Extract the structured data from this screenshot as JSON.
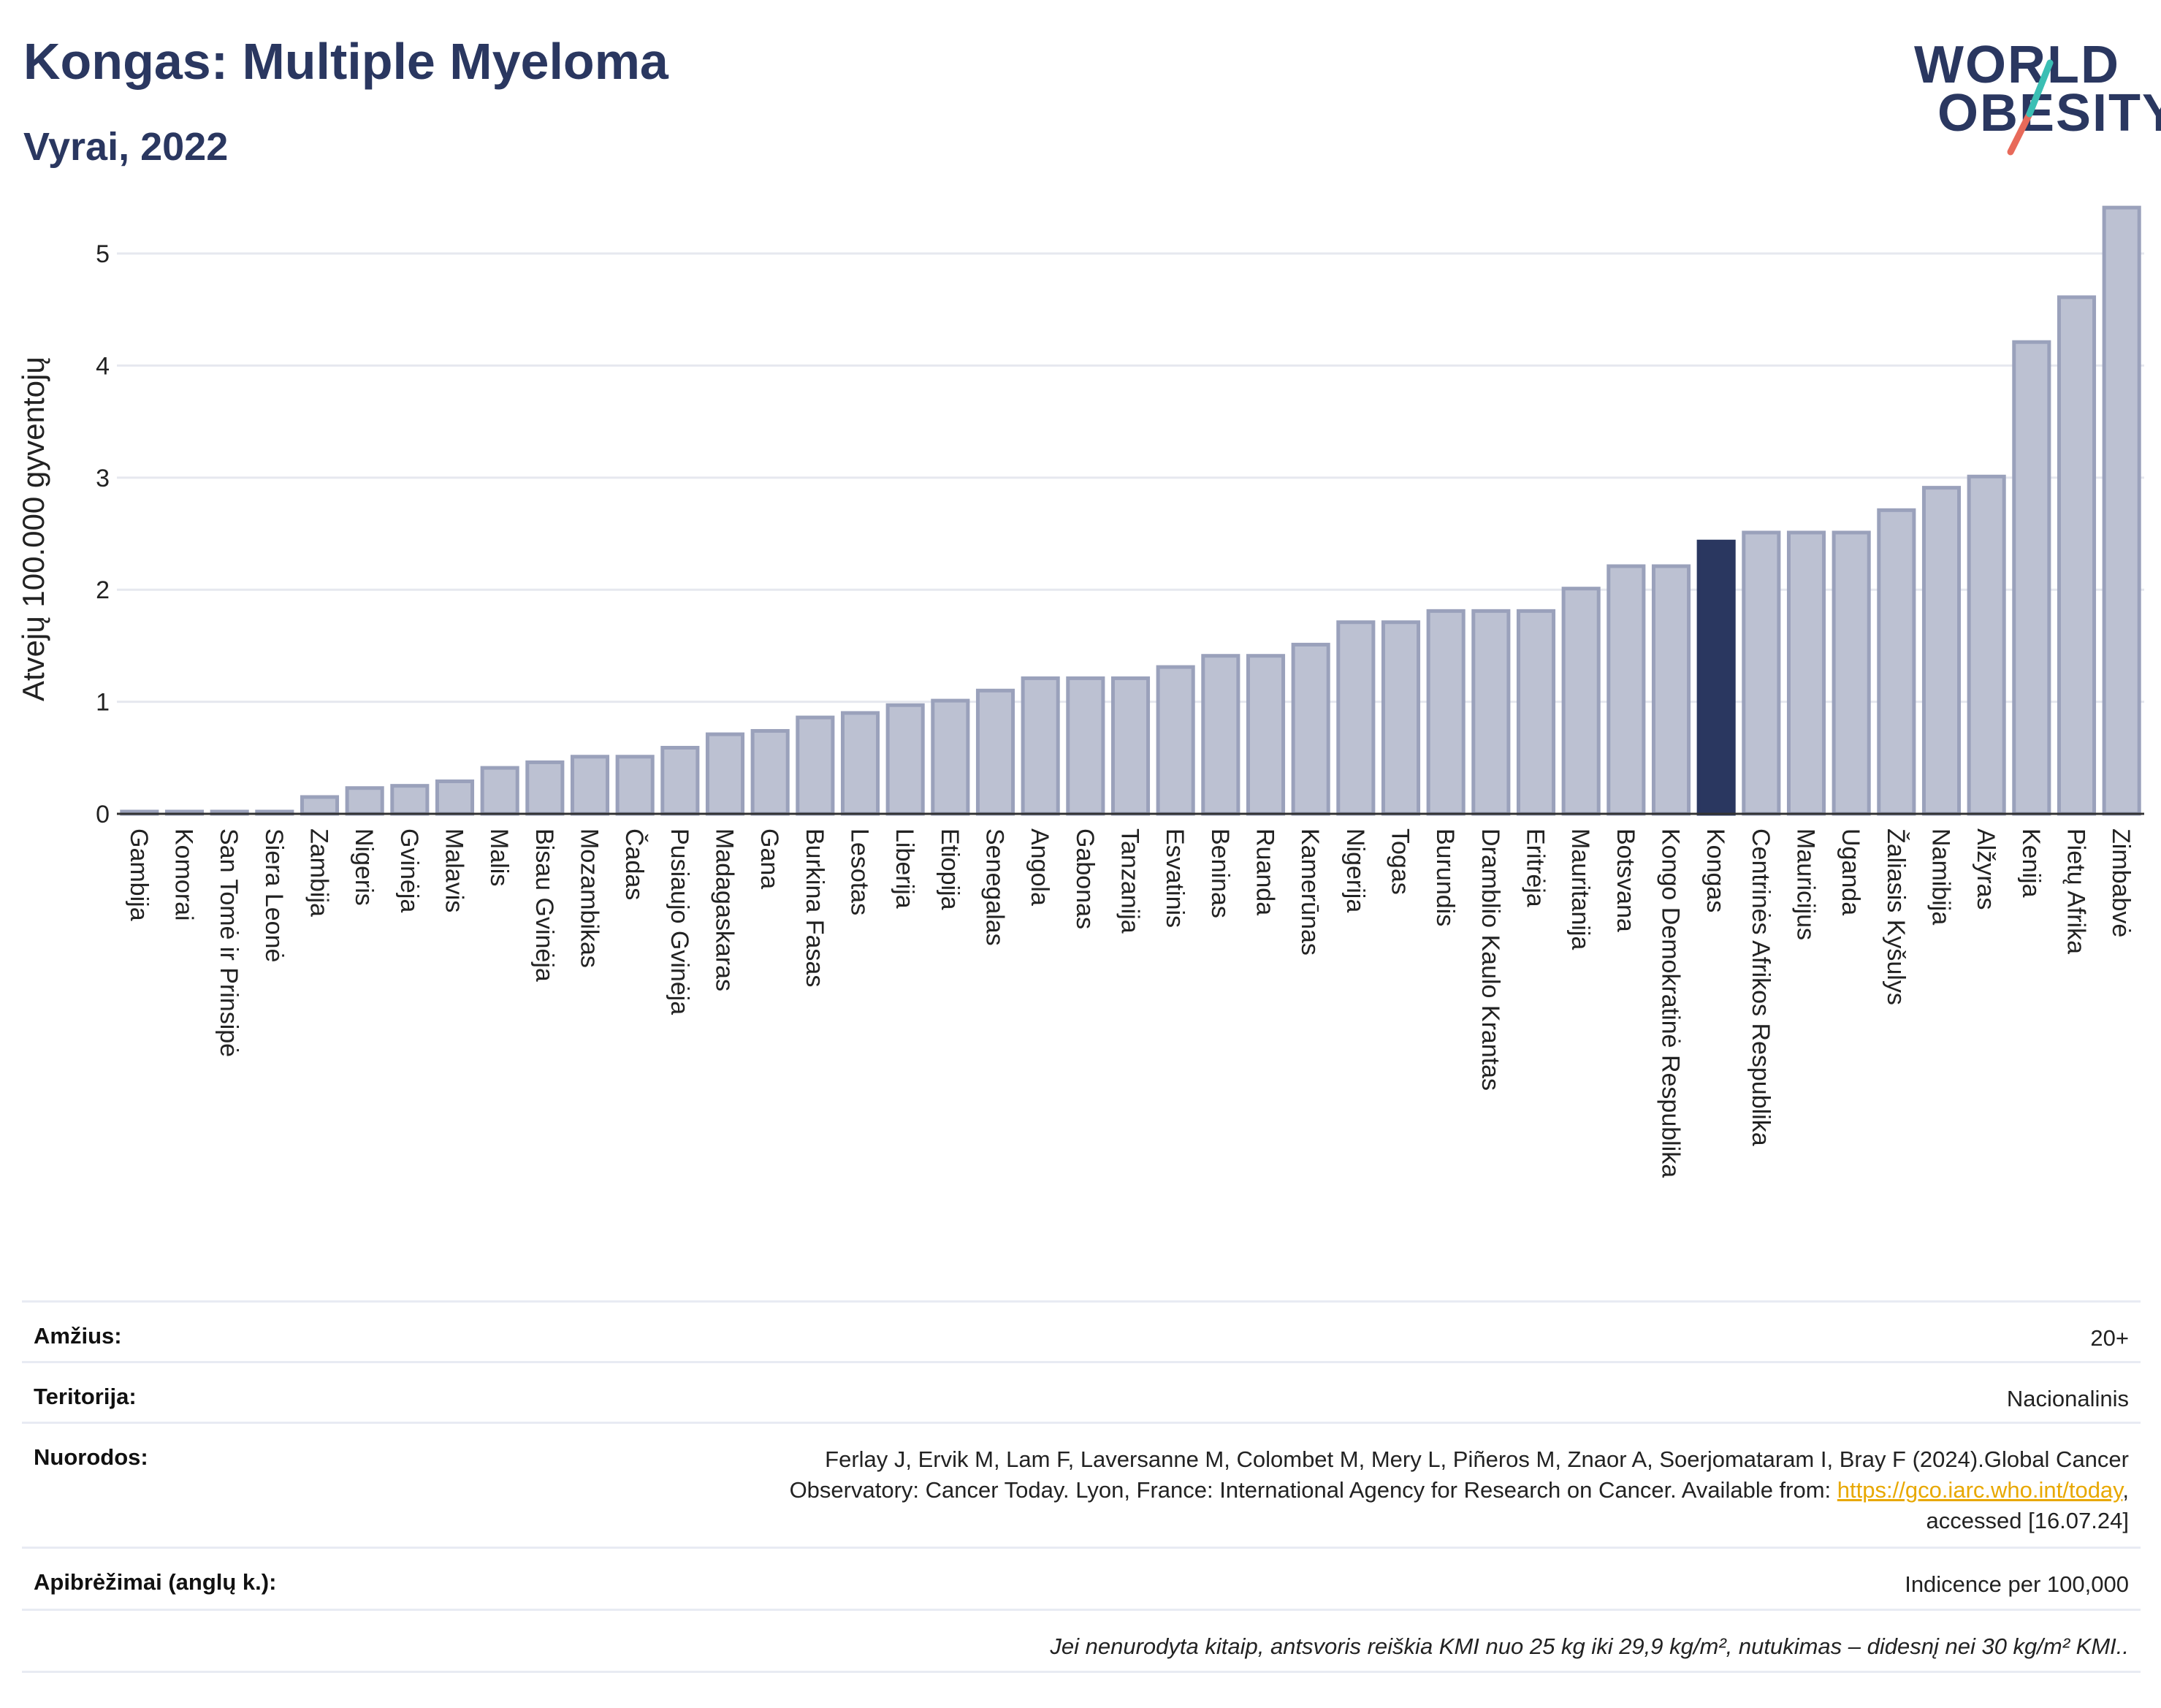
{
  "header": {
    "title": "Kongas: Multiple Myeloma",
    "subtitle": "Vyrai, 2022",
    "logo_line1": "WORLD",
    "logo_line2": "OBESITY"
  },
  "colors": {
    "bar": "#bcc1d2",
    "bar_stroke": "#9aa1bb",
    "highlight": "#2a3760",
    "grid": "#e6e8ef",
    "axis": "#333333",
    "logo_teal": "#3bbfb4",
    "logo_coral": "#e86a5a"
  },
  "chart_data": {
    "type": "bar",
    "ylabel": "Atvejų 100.000 gyventojų",
    "ylim": [
      0,
      5.6
    ],
    "yticks": [
      0,
      1,
      2,
      3,
      4,
      5
    ],
    "highlight": "Kongas",
    "categories": [
      "Gambija",
      "Komorai",
      "San Tomė ir Prinsipė",
      "Siera Leonė",
      "Zambija",
      "Nigeris",
      "Gvinėja",
      "Malavis",
      "Malis",
      "Bisau Gvinėja",
      "Mozambikas",
      "Čadas",
      "Pusiaujo Gvinėja",
      "Madagaskaras",
      "Gana",
      "Burkina Fasas",
      "Lesotas",
      "Liberija",
      "Etiopija",
      "Senegalas",
      "Angola",
      "Gabonas",
      "Tanzanija",
      "Esvatinis",
      "Beninas",
      "Ruanda",
      "Kamerūnas",
      "Nigerija",
      "Togas",
      "Burundis",
      "Dramblio Kaulo Krantas",
      "Eritrėja",
      "Mauritanija",
      "Botsvana",
      "Kongo Demokratinė Respublika",
      "Kongas",
      "Centrinės Afrikos Respublika",
      "Mauricijus",
      "Uganda",
      "Žaliasis Kyšulys",
      "Namibija",
      "Alžyras",
      "Kenija",
      "Pietų Afrika",
      "Zimbabvė"
    ],
    "values": [
      0.02,
      0.02,
      0.02,
      0.02,
      0.15,
      0.23,
      0.25,
      0.29,
      0.41,
      0.46,
      0.51,
      0.51,
      0.59,
      0.71,
      0.74,
      0.86,
      0.9,
      0.97,
      1.01,
      1.1,
      1.21,
      1.21,
      1.21,
      1.31,
      1.41,
      1.41,
      1.51,
      1.71,
      1.71,
      1.81,
      1.81,
      1.81,
      2.01,
      2.21,
      2.21,
      2.43,
      2.51,
      2.51,
      2.51,
      2.71,
      2.91,
      3.01,
      4.21,
      4.61,
      5.41
    ]
  },
  "meta": {
    "age_label": "Amžius:",
    "age_value": "20+",
    "territory_label": "Teritorija:",
    "territory_value": "Nacionalinis",
    "refs_label": "Nuorodos:",
    "refs_line1": "Ferlay J, Ervik M, Lam F, Laversanne M, Colombet M, Mery L, Piñeros M, Znaor A, Soerjomataram I, Bray F (2024).Global Cancer",
    "refs_line2": "Observatory: Cancer Today. Lyon, France: International Agency for Research on Cancer. Available from: ",
    "refs_link": "https://gco.iarc.who.int/today",
    "refs_line2_end": ",",
    "refs_line3": "accessed [16.07.24]",
    "defs_label": "Apibrėžimai (anglų k.):",
    "defs_value": "Indicence per 100,000",
    "note": "Jei nenurodyta kitaip, antsvoris reiškia KMI nuo 25 kg iki 29,9 kg/m², nutukimas – didesnį nei 30 kg/m² KMI.."
  }
}
